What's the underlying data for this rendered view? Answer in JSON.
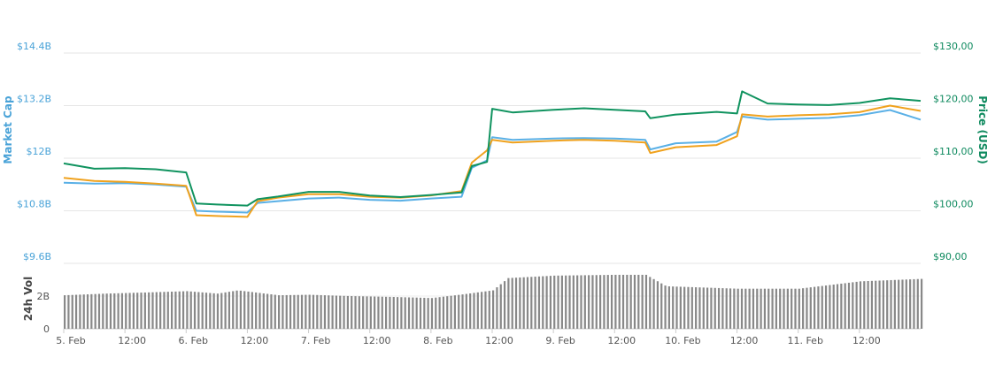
{
  "chart_data": {
    "type": "line",
    "x_tick_labels": [
      "5. Feb",
      "12:00",
      "6. Feb",
      "12:00",
      "7. Feb",
      "12:00",
      "8. Feb",
      "12:00",
      "9. Feb",
      "12:00",
      "10. Feb",
      "12:00",
      "11. Feb",
      "12:00"
    ],
    "left_axis": {
      "label": "Market Cap",
      "ticks": [
        "$14.4B",
        "$13.2B",
        "$12B",
        "$10.8B",
        "$9.6B"
      ],
      "tick_values": [
        14.4,
        13.2,
        12.0,
        10.8,
        9.6
      ]
    },
    "right_axis": {
      "label": "Price (USD)",
      "ticks": [
        "$130,00",
        "$120,00",
        "$110,00",
        "$100,00",
        "$90,00"
      ],
      "tick_values": [
        130,
        120,
        110,
        100,
        90
      ]
    },
    "volume_axis": {
      "label": "24h Vol",
      "ticks": [
        "2B",
        "0"
      ],
      "tick_values": [
        2,
        0
      ]
    },
    "x_hours": [
      0,
      6,
      12,
      18,
      24,
      26,
      30,
      36,
      38,
      42,
      48,
      54,
      60,
      66,
      72,
      78,
      80,
      83,
      84,
      88,
      96,
      102,
      108,
      114,
      115,
      120,
      128,
      132,
      133,
      138,
      144,
      150,
      156,
      162,
      168
    ],
    "series": [
      {
        "name": "Market Cap",
        "color": "#5ab0e6",
        "axis": "left",
        "values": [
          11.44,
          11.42,
          11.43,
          11.4,
          11.35,
          10.8,
          10.78,
          10.76,
          10.98,
          11.02,
          11.08,
          11.1,
          11.05,
          11.03,
          11.08,
          11.12,
          11.78,
          11.95,
          12.48,
          12.42,
          12.45,
          12.46,
          12.45,
          12.42,
          12.2,
          12.34,
          12.38,
          12.6,
          12.95,
          12.88,
          12.9,
          12.92,
          12.98,
          13.1,
          12.88
        ]
      },
      {
        "name": "Volume",
        "color": "#f0a21e",
        "axis": "left",
        "values": [
          11.55,
          11.48,
          11.46,
          11.42,
          11.37,
          10.7,
          10.68,
          10.66,
          11.02,
          11.1,
          11.18,
          11.18,
          11.12,
          11.1,
          11.15,
          11.25,
          11.9,
          12.18,
          12.42,
          12.36,
          12.4,
          12.42,
          12.4,
          12.36,
          12.12,
          12.25,
          12.3,
          12.5,
          13.0,
          12.95,
          12.98,
          13.0,
          13.05,
          13.2,
          13.08
        ]
      },
      {
        "name": "Price",
        "color": "#10935f",
        "axis": "right",
        "values": [
          109.0,
          108.0,
          108.1,
          107.9,
          107.3,
          101.4,
          101.2,
          101.0,
          102.2,
          102.7,
          103.6,
          103.6,
          102.9,
          102.6,
          103.0,
          103.5,
          108.5,
          109.3,
          119.4,
          118.7,
          119.2,
          119.5,
          119.2,
          118.9,
          117.6,
          118.3,
          118.8,
          118.5,
          122.7,
          120.4,
          120.2,
          120.1,
          120.5,
          121.4,
          120.9
        ]
      }
    ],
    "volume": {
      "x_hours": [
        0,
        8,
        16,
        24,
        30,
        34,
        42,
        48,
        56,
        64,
        72,
        78,
        84,
        87,
        96,
        108,
        114,
        118,
        132,
        144,
        156,
        168
      ],
      "values": [
        2.05,
        2.15,
        2.22,
        2.3,
        2.15,
        2.35,
        2.05,
        2.08,
        2.0,
        1.95,
        1.88,
        2.1,
        2.35,
        3.1,
        3.25,
        3.3,
        3.3,
        2.6,
        2.45,
        2.45,
        2.9,
        3.05
      ],
      "color": "#888888"
    },
    "x_range_hours": [
      0,
      168
    ],
    "left_ylim": [
      9.6,
      14.4
    ],
    "right_ylim": [
      90,
      130
    ],
    "volume_ylim": [
      0,
      4
    ],
    "grid": true
  }
}
